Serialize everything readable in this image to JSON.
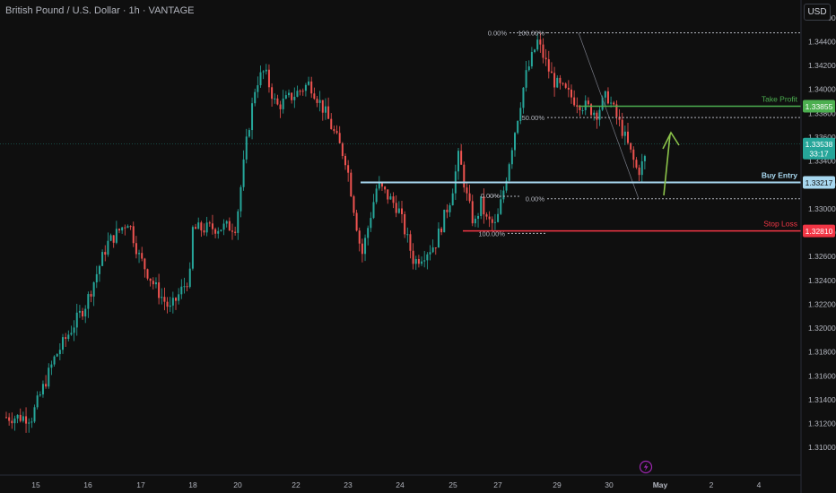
{
  "header": {
    "title": "British Pound / U.S. Dollar · 1h · VANTAGE",
    "currency": "USD"
  },
  "colors": {
    "up": "#26a69a",
    "down": "#ef5350",
    "green": "#4caf50",
    "buy": "#a8d8f0",
    "stop": "#f23645",
    "bg": "#0f0f0f",
    "text": "#b2b5be"
  },
  "chart_data": {
    "type": "candlestick",
    "symbol": "GBPUSD",
    "timeframe": "1h",
    "ylim": [
      1.309,
      1.347
    ],
    "y_ticks": [
      "1.34600",
      "1.34400",
      "1.34200",
      "1.34000",
      "1.33800",
      "1.33600",
      "1.33400",
      "1.33200",
      "1.33000",
      "1.32800",
      "1.32600",
      "1.32400",
      "1.32200",
      "1.32000",
      "1.31800",
      "1.31600",
      "1.31400",
      "1.31200",
      "1.31000"
    ],
    "x_ticks": [
      "15",
      "16",
      "17",
      "18",
      "20",
      "22",
      "23",
      "24",
      "25",
      "27",
      "29",
      "30",
      "May",
      "2",
      "4"
    ],
    "price_path": [
      [
        "15",
        1.313
      ],
      [
        "15.4",
        1.3175
      ],
      [
        "15.8",
        1.3205
      ],
      [
        "16",
        1.322
      ],
      [
        "16.4",
        1.327
      ],
      [
        "16.8",
        1.329
      ],
      [
        "17",
        1.326
      ],
      [
        "17.3",
        1.3235
      ],
      [
        "17.6",
        1.3215
      ],
      [
        "18",
        1.3245
      ],
      [
        "18.5",
        1.327
      ],
      [
        "19",
        1.3272
      ],
      [
        "20",
        1.3285
      ],
      [
        "20.4",
        1.336
      ],
      [
        "20.7",
        1.3405
      ],
      [
        "21",
        1.3415
      ],
      [
        "21.4",
        1.3385
      ],
      [
        "22",
        1.3395
      ],
      [
        "22.3",
        1.3405
      ],
      [
        "22.6",
        1.338
      ],
      [
        "23",
        1.334
      ],
      [
        "23.3",
        1.326
      ],
      [
        "23.6",
        1.332
      ],
      [
        "24",
        1.33
      ],
      [
        "24.3",
        1.3255
      ],
      [
        "24.7",
        1.327
      ],
      [
        "25",
        1.331
      ],
      [
        "25.3",
        1.3345
      ],
      [
        "25.6",
        1.331
      ],
      [
        "25.9",
        1.3285
      ],
      [
        "26.2",
        1.3305
      ],
      [
        "26.5",
        1.329
      ],
      [
        "27",
        1.3285
      ],
      [
        "27.3",
        1.332
      ],
      [
        "27.6",
        1.336
      ],
      [
        "28",
        1.341
      ],
      [
        "28.4",
        1.344
      ],
      [
        "28.8",
        1.3415
      ],
      [
        "29",
        1.3405
      ],
      [
        "29.4",
        1.339
      ],
      [
        "29.8",
        1.338
      ],
      [
        "30",
        1.3395
      ],
      [
        "30.3",
        1.3365
      ],
      [
        "30.6",
        1.333
      ],
      [
        "30.9",
        1.3355
      ]
    ],
    "last_price": "1.33538",
    "countdown": "33:17",
    "levels": [
      {
        "name": "Take Profit",
        "price": "1.33855",
        "value": 1.33855,
        "color": "green"
      },
      {
        "name": "Buy Entry",
        "price": "1.33217",
        "value": 1.33217,
        "color": "buy"
      },
      {
        "name": "Stop Loss",
        "price": "1.32810",
        "value": 1.3281,
        "color": "stop"
      }
    ],
    "fib_left": [
      {
        "label": "0.00%",
        "value": 1.3447
      },
      {
        "label": "100.00%",
        "value": 1.3279
      }
    ],
    "fib_right": [
      {
        "label": "100.00%",
        "value": 1.3447
      },
      {
        "label": "50.00%",
        "value": 1.3376
      },
      {
        "label": "0.00%",
        "value": 1.3308
      }
    ],
    "fib_partial_label": "0.00%"
  }
}
